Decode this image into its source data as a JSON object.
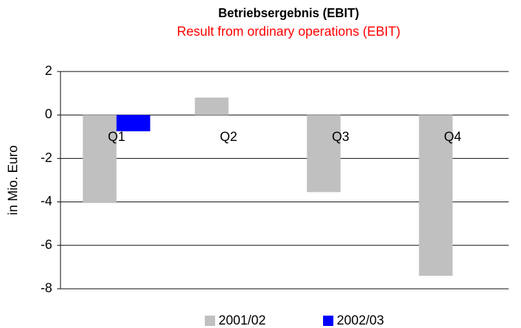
{
  "chart_data": {
    "type": "bar",
    "title": "Betriebsergebnis (EBIT)",
    "subtitle": "Result from ordinary operations (EBIT)",
    "y_label": "in Mio. Euro",
    "categories": [
      "Q1",
      "Q2",
      "Q3",
      "Q4"
    ],
    "series": [
      {
        "name": "2001/02",
        "color": "#c0c0c0",
        "values": [
          -4.05,
          0.8,
          -3.55,
          -7.4
        ]
      },
      {
        "name": "2002/03",
        "color": "#0000ff",
        "values": [
          -0.75,
          null,
          null,
          null
        ]
      }
    ],
    "ylim": [
      -8,
      2
    ],
    "yticks": [
      -8,
      -6,
      -4,
      -2,
      0,
      2
    ],
    "grid": true,
    "legend": "bottom"
  }
}
